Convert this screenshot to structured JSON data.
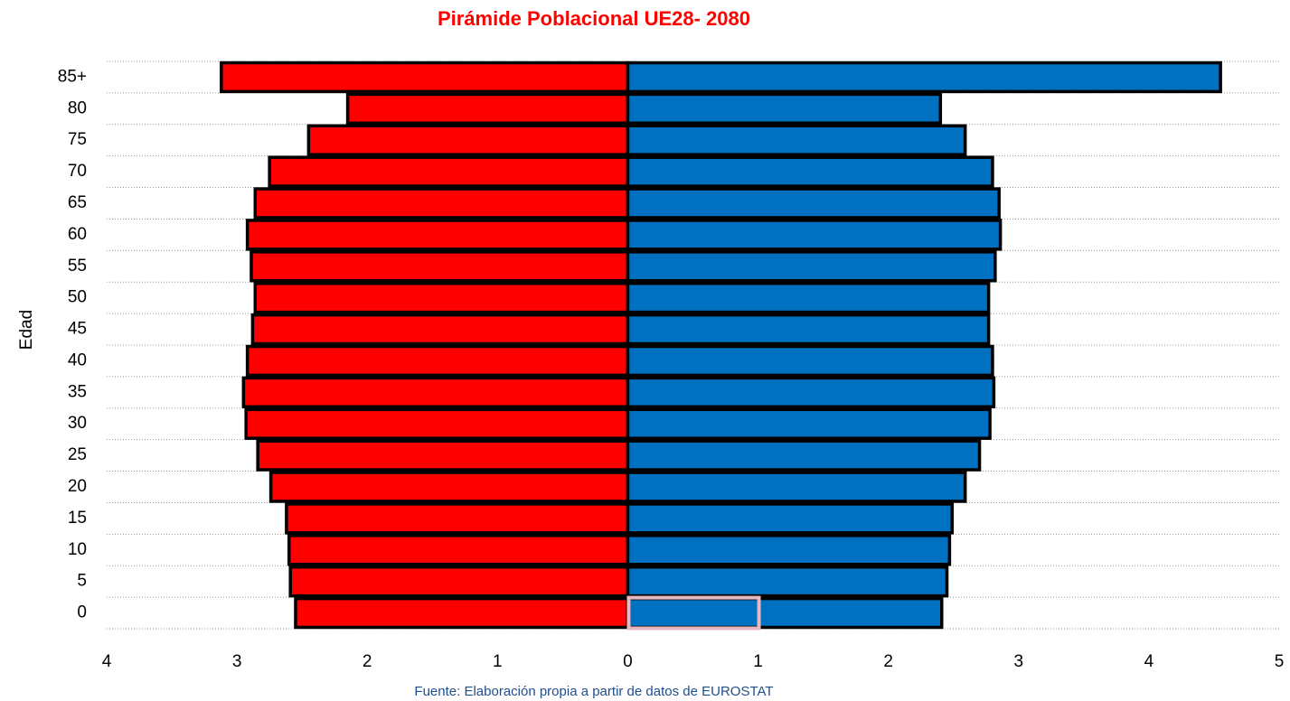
{
  "chart_data": {
    "type": "pyramid",
    "title": "Pirámide Poblacional UE28- 2080",
    "ylabel": "Edad",
    "source": "Fuente: Elaboración propia a partir de datos de EUROSTAT",
    "categories": [
      "0",
      "5",
      "10",
      "15",
      "20",
      "25",
      "30",
      "35",
      "40",
      "45",
      "50",
      "55",
      "60",
      "65",
      "70",
      "75",
      "80",
      "85+"
    ],
    "series": [
      {
        "color": "#ff0000",
        "values": [
          -2.55,
          -2.59,
          -2.6,
          -2.62,
          -2.74,
          -2.84,
          -2.93,
          -2.95,
          -2.92,
          -2.88,
          -2.86,
          -2.89,
          -2.92,
          -2.86,
          -2.75,
          -2.45,
          -2.15,
          -3.12
        ]
      },
      {
        "color": "#0070c0",
        "values": [
          2.41,
          2.45,
          2.47,
          2.49,
          2.59,
          2.7,
          2.78,
          2.81,
          2.8,
          2.77,
          2.77,
          2.82,
          2.86,
          2.85,
          2.8,
          2.59,
          2.4,
          4.55
        ]
      }
    ],
    "xlim": [
      -4,
      5
    ],
    "xticks": [
      {
        "value": -4,
        "label": "4"
      },
      {
        "value": -3,
        "label": "3"
      },
      {
        "value": -2,
        "label": "2"
      },
      {
        "value": -1,
        "label": "1"
      },
      0,
      1,
      2,
      3,
      4,
      5
    ],
    "grid": true
  }
}
